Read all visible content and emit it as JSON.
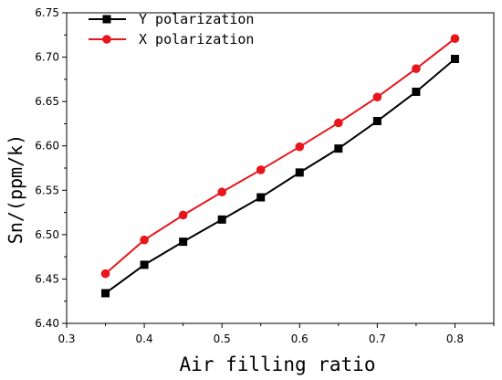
{
  "chart_data": {
    "type": "line",
    "xlabel": "Air filling ratio",
    "ylabel": "Sn/(ppm/k)",
    "xlim": [
      0.3,
      0.85
    ],
    "ylim": [
      6.4,
      6.75
    ],
    "x_ticks": [
      0.3,
      0.4,
      0.5,
      0.6,
      0.7,
      0.8
    ],
    "x_tick_labels": [
      "0.3",
      "0.4",
      "0.5",
      "0.6",
      "0.7",
      "0.8"
    ],
    "y_ticks": [
      6.4,
      6.45,
      6.5,
      6.55,
      6.6,
      6.65,
      6.7,
      6.75
    ],
    "y_tick_labels": [
      "6.40",
      "6.45",
      "6.50",
      "6.55",
      "6.60",
      "6.65",
      "6.70",
      "6.75"
    ],
    "legend_position": "top-left",
    "x": [
      0.35,
      0.4,
      0.45,
      0.5,
      0.55,
      0.6,
      0.65,
      0.7,
      0.75,
      0.8
    ],
    "series": [
      {
        "name": "Y polarization",
        "color": "#000000",
        "marker": "square",
        "values": [
          6.434,
          6.466,
          6.492,
          6.517,
          6.542,
          6.57,
          6.597,
          6.628,
          6.661,
          6.698
        ]
      },
      {
        "name": "X polarization",
        "color": "#e8161c",
        "marker": "circle",
        "values": [
          6.456,
          6.494,
          6.522,
          6.548,
          6.573,
          6.599,
          6.626,
          6.655,
          6.687,
          6.721
        ]
      }
    ]
  }
}
